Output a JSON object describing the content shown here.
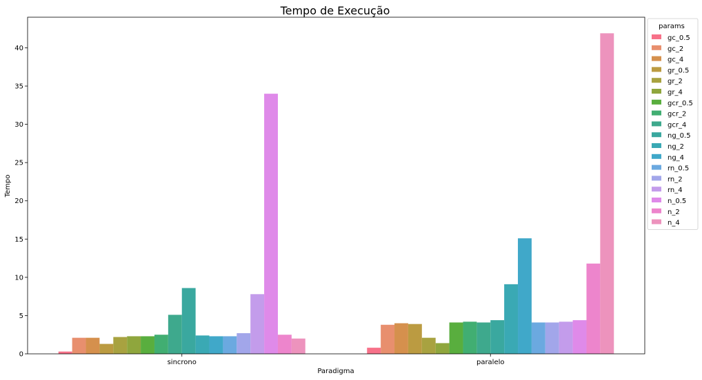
{
  "chart_data": {
    "type": "bar",
    "title": "Tempo de Execução",
    "xlabel": "Paradigma",
    "ylabel": "Tempo",
    "categories": [
      "sincrono",
      "paralelo"
    ],
    "ylim": [
      0,
      44
    ],
    "yticks": [
      0,
      5,
      10,
      15,
      20,
      25,
      30,
      35,
      40
    ],
    "grid": false,
    "legend": {
      "title": "params",
      "placement": "outside-top-right"
    },
    "series": [
      {
        "name": "gc_0.5",
        "color": "#f77189",
        "values": [
          0.3,
          0.8
        ]
      },
      {
        "name": "gc_2",
        "color": "#e88f6e",
        "values": [
          2.1,
          3.8
        ]
      },
      {
        "name": "gc_4",
        "color": "#d5904d",
        "values": [
          2.1,
          4.0
        ]
      },
      {
        "name": "gr_0.5",
        "color": "#bb9b41",
        "values": [
          1.3,
          3.9
        ]
      },
      {
        "name": "gr_2",
        "color": "#a8a240",
        "values": [
          2.2,
          2.1
        ]
      },
      {
        "name": "gr_4",
        "color": "#8fa63d",
        "values": [
          2.3,
          1.4
        ]
      },
      {
        "name": "gcr_0.5",
        "color": "#59ae3e",
        "values": [
          2.3,
          4.1
        ]
      },
      {
        "name": "gcr_2",
        "color": "#41ae72",
        "values": [
          2.5,
          4.2
        ]
      },
      {
        "name": "gcr_4",
        "color": "#3ea98d",
        "values": [
          5.1,
          4.1
        ]
      },
      {
        "name": "ng_0.5",
        "color": "#3aa89f",
        "values": [
          8.6,
          4.4
        ]
      },
      {
        "name": "ng_2",
        "color": "#3aa9b4",
        "values": [
          2.4,
          9.1
        ]
      },
      {
        "name": "ng_4",
        "color": "#40a8c9",
        "values": [
          2.3,
          15.1
        ]
      },
      {
        "name": "rn_0.5",
        "color": "#6ba9e0",
        "values": [
          2.3,
          4.1
        ]
      },
      {
        "name": "rn_2",
        "color": "#a2a6ea",
        "values": [
          2.7,
          4.1
        ]
      },
      {
        "name": "rn_4",
        "color": "#c39ceb",
        "values": [
          7.8,
          4.2
        ]
      },
      {
        "name": "n_0.5",
        "color": "#df8ae9",
        "values": [
          34.0,
          4.4
        ]
      },
      {
        "name": "n_2",
        "color": "#ed85cc",
        "values": [
          2.5,
          11.8
        ]
      },
      {
        "name": "n_4",
        "color": "#ed93bd",
        "values": [
          2.0,
          41.9
        ]
      }
    ]
  }
}
